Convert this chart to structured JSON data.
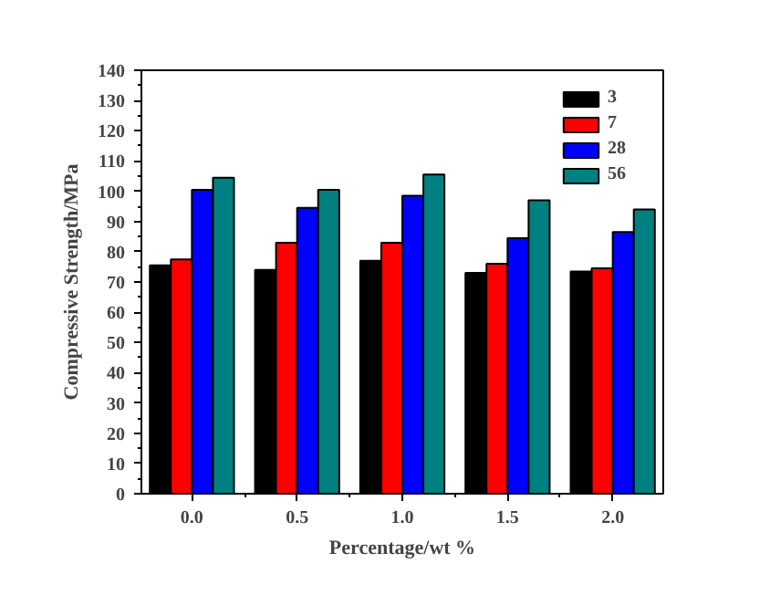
{
  "chart_data": {
    "type": "bar",
    "xlabel": "Percentage/wt %",
    "ylabel": "Compressive Strength/MPa",
    "x": [
      0.0,
      0.5,
      1.0,
      1.5,
      2.0
    ],
    "series": [
      {
        "name": "3",
        "color": "#000000",
        "values": [
          75.5,
          74,
          77,
          73,
          73.5
        ]
      },
      {
        "name": "7",
        "color": "#ff0000",
        "values": [
          77.5,
          83,
          83,
          76,
          74.5
        ]
      },
      {
        "name": "28",
        "color": "#0000ff",
        "values": [
          100.5,
          94.5,
          98.5,
          84.5,
          86.5
        ]
      },
      {
        "name": "56",
        "color": "#008080",
        "values": [
          104.5,
          100.5,
          105.5,
          97,
          94
        ]
      }
    ],
    "xlim": [
      -0.24,
      2.24
    ],
    "xticks": [
      {
        "value": 0,
        "label": "0.0"
      },
      {
        "value": 0.5,
        "label": "0.5"
      },
      {
        "value": 1,
        "label": "1.0"
      },
      {
        "value": 1.5,
        "label": "1.5"
      },
      {
        "value": 2,
        "label": "2.0"
      }
    ],
    "ylim": [
      0,
      140
    ],
    "yticks": [
      0,
      10,
      20,
      30,
      40,
      50,
      60,
      70,
      80,
      90,
      100,
      110,
      120,
      130,
      140
    ],
    "grid": false,
    "legend": "top right"
  }
}
